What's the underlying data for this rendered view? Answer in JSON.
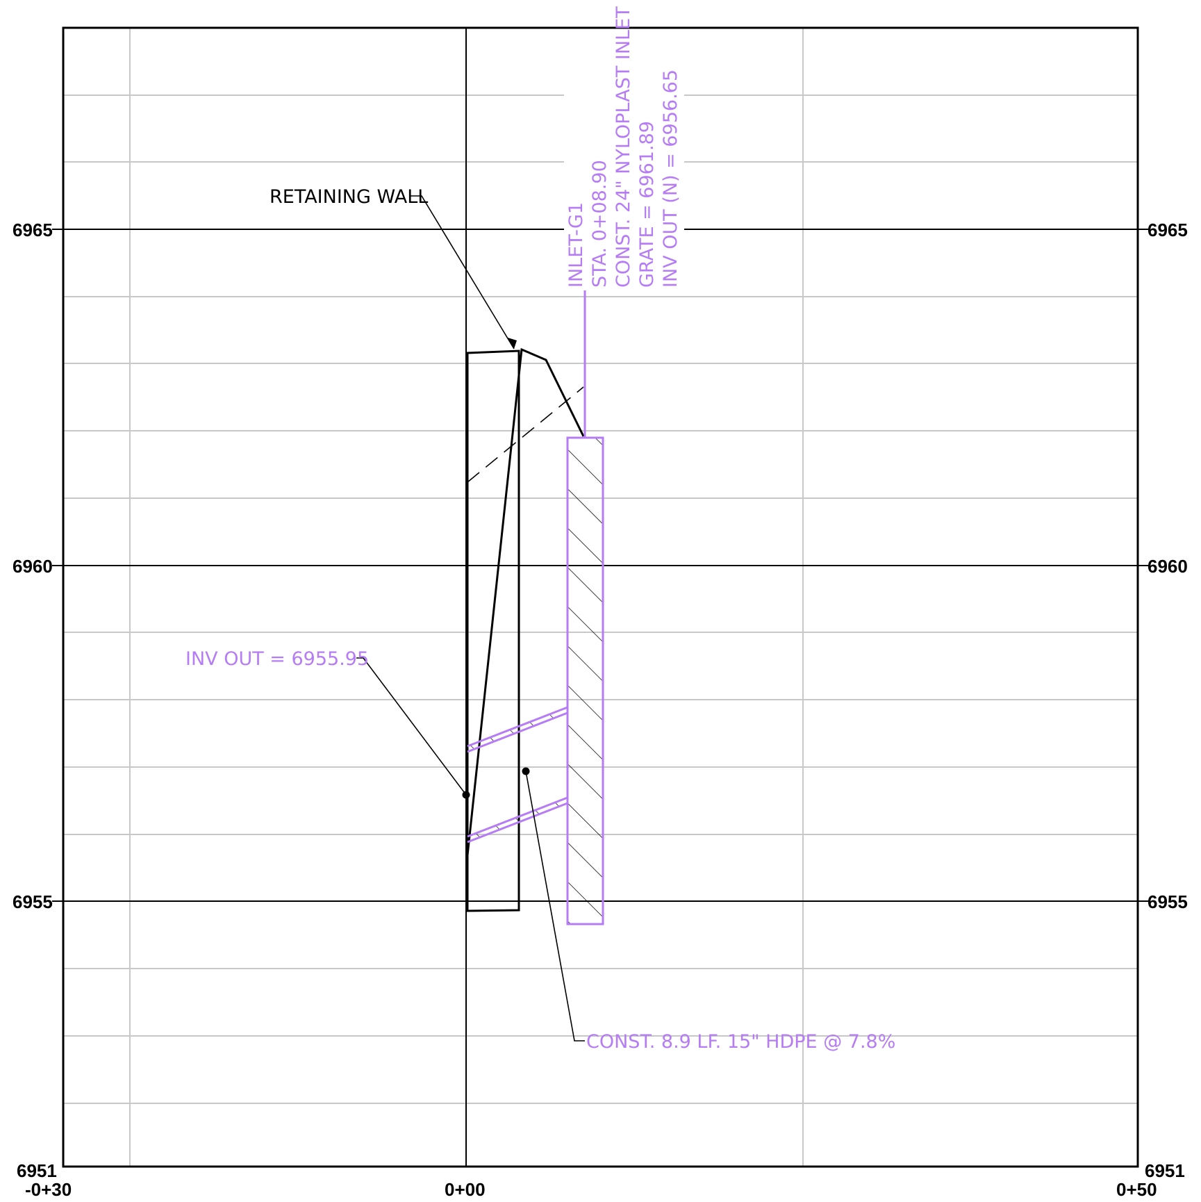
{
  "profile": {
    "elevation_labels_left": [
      "6965",
      "6960",
      "6955",
      "6951"
    ],
    "elevation_labels_right": [
      "6965",
      "6960",
      "6955",
      "6951"
    ],
    "station_labels": [
      "-0+30",
      "0+00",
      "0+50"
    ]
  },
  "annotations": {
    "retaining_wall": "RETAINING WALL",
    "inv_out": "INV OUT = 6955.95",
    "pipe": "CONST. 8.9 LF. 15\" HDPE @ 7.8%"
  },
  "inlet_callout": {
    "line1": "INLET-G1",
    "line2": "STA. 0+08.90",
    "line3": "CONST. 24\" NYLOPLAST INLET",
    "line4": "GRATE = 6961.89",
    "line5": "INV OUT (N) = 6956.65"
  },
  "colors": {
    "accent": "#b57cf5",
    "ink": "#000000",
    "grid": "#c8c8c8"
  }
}
